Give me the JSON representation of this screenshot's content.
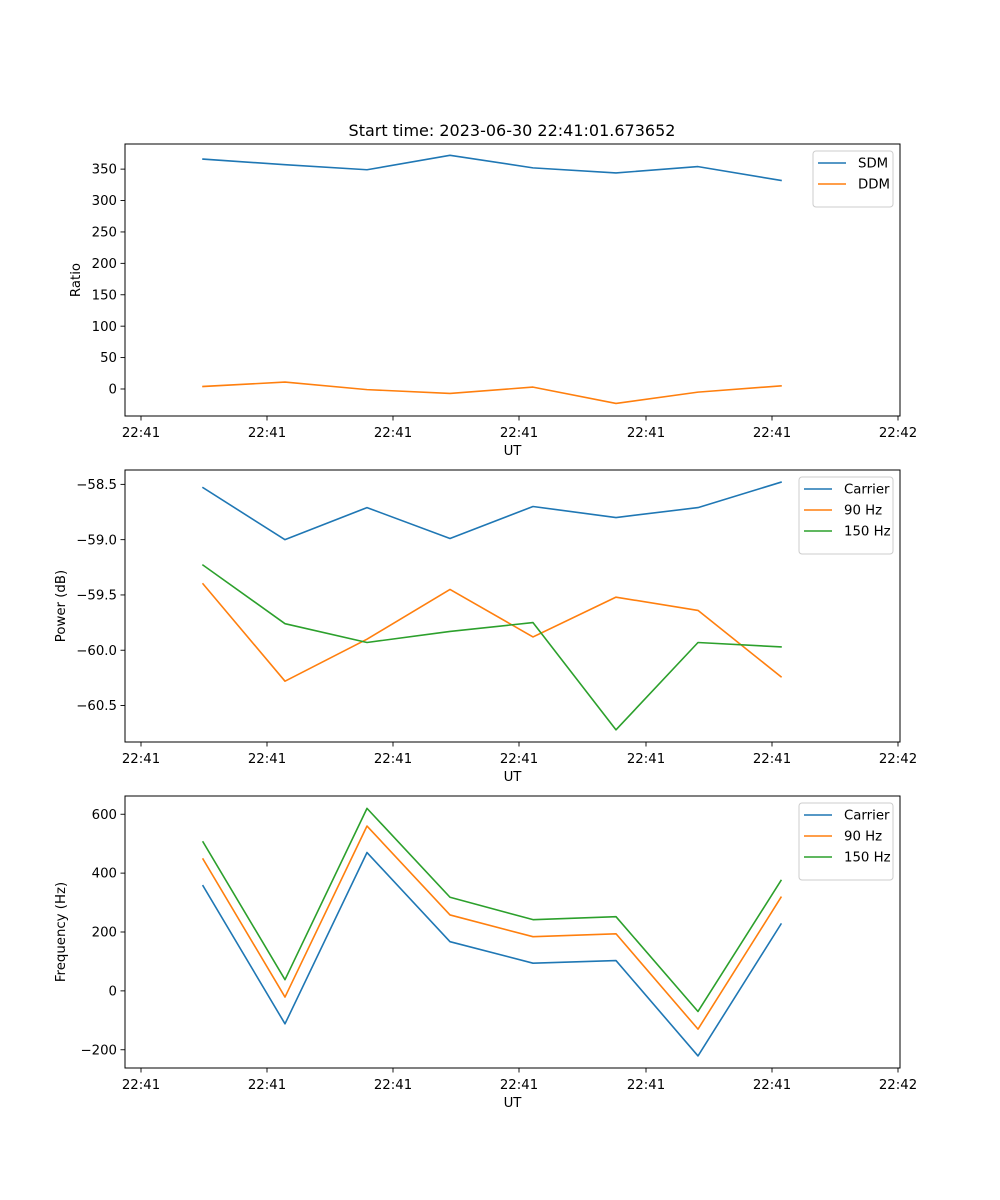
{
  "figure": {
    "title": "Start time: 2023-06-30 22:41:01.673652"
  },
  "chart_data": [
    {
      "type": "line",
      "title": "Start time: 2023-06-30 22:41:01.673652",
      "xlabel": "UT",
      "ylabel": "Ratio",
      "x_tick_labels": [
        "22:41",
        "22:41",
        "22:41",
        "22:41",
        "22:41",
        "22:41",
        "22:42"
      ],
      "y_ticks": [
        0,
        50,
        100,
        150,
        200,
        250,
        300,
        350
      ],
      "ylim": [
        -43,
        390
      ],
      "grid": false,
      "legend_position": "top-right",
      "series": [
        {
          "name": "SDM",
          "color": "#1f77b4",
          "values": [
            366,
            357,
            349,
            372,
            352,
            344,
            354,
            332
          ]
        },
        {
          "name": "DDM",
          "color": "#ff7f0e",
          "values": [
            4,
            11,
            -1,
            -7,
            3,
            -23,
            -5,
            5
          ]
        }
      ]
    },
    {
      "type": "line",
      "xlabel": "UT",
      "ylabel": "Power (dB)",
      "x_tick_labels": [
        "22:41",
        "22:41",
        "22:41",
        "22:41",
        "22:41",
        "22:41",
        "22:42"
      ],
      "y_ticks": [
        -58.5,
        -59.0,
        -59.5,
        -60.0,
        -60.5
      ],
      "y_tick_labels": [
        "−58.5",
        "−59.0",
        "−59.5",
        "−60.0",
        "−60.5"
      ],
      "ylim": [
        -60.83,
        -58.37
      ],
      "grid": false,
      "legend_position": "top-right",
      "series": [
        {
          "name": "Carrier",
          "color": "#1f77b4",
          "values": [
            -58.53,
            -59.0,
            -58.71,
            -58.99,
            -58.7,
            -58.8,
            -58.71,
            -58.48
          ]
        },
        {
          "name": "90 Hz",
          "color": "#ff7f0e",
          "values": [
            -59.4,
            -60.28,
            -59.9,
            -59.45,
            -59.88,
            -59.52,
            -59.64,
            -60.24
          ]
        },
        {
          "name": "150 Hz",
          "color": "#2ca02c",
          "values": [
            -59.23,
            -59.76,
            -59.93,
            -59.83,
            -59.75,
            -60.72,
            -59.93,
            -59.97
          ]
        }
      ]
    },
    {
      "type": "line",
      "xlabel": "UT",
      "ylabel": "Frequency (Hz)",
      "x_tick_labels": [
        "22:41",
        "22:41",
        "22:41",
        "22:41",
        "22:41",
        "22:41",
        "22:42"
      ],
      "y_ticks": [
        -200,
        0,
        200,
        400,
        600
      ],
      "y_tick_labels": [
        "−200",
        "0",
        "200",
        "400",
        "600"
      ],
      "ylim": [
        -262,
        662
      ],
      "grid": false,
      "legend_position": "top-right",
      "series": [
        {
          "name": "Carrier",
          "color": "#1f77b4",
          "values": [
            357,
            -112,
            470,
            167,
            94,
            103,
            -221,
            227
          ]
        },
        {
          "name": "90 Hz",
          "color": "#ff7f0e",
          "values": [
            448,
            -21,
            560,
            258,
            184,
            194,
            -130,
            318
          ]
        },
        {
          "name": "150 Hz",
          "color": "#2ca02c",
          "values": [
            506,
            38,
            620,
            318,
            242,
            252,
            -70,
            375
          ]
        }
      ]
    }
  ]
}
